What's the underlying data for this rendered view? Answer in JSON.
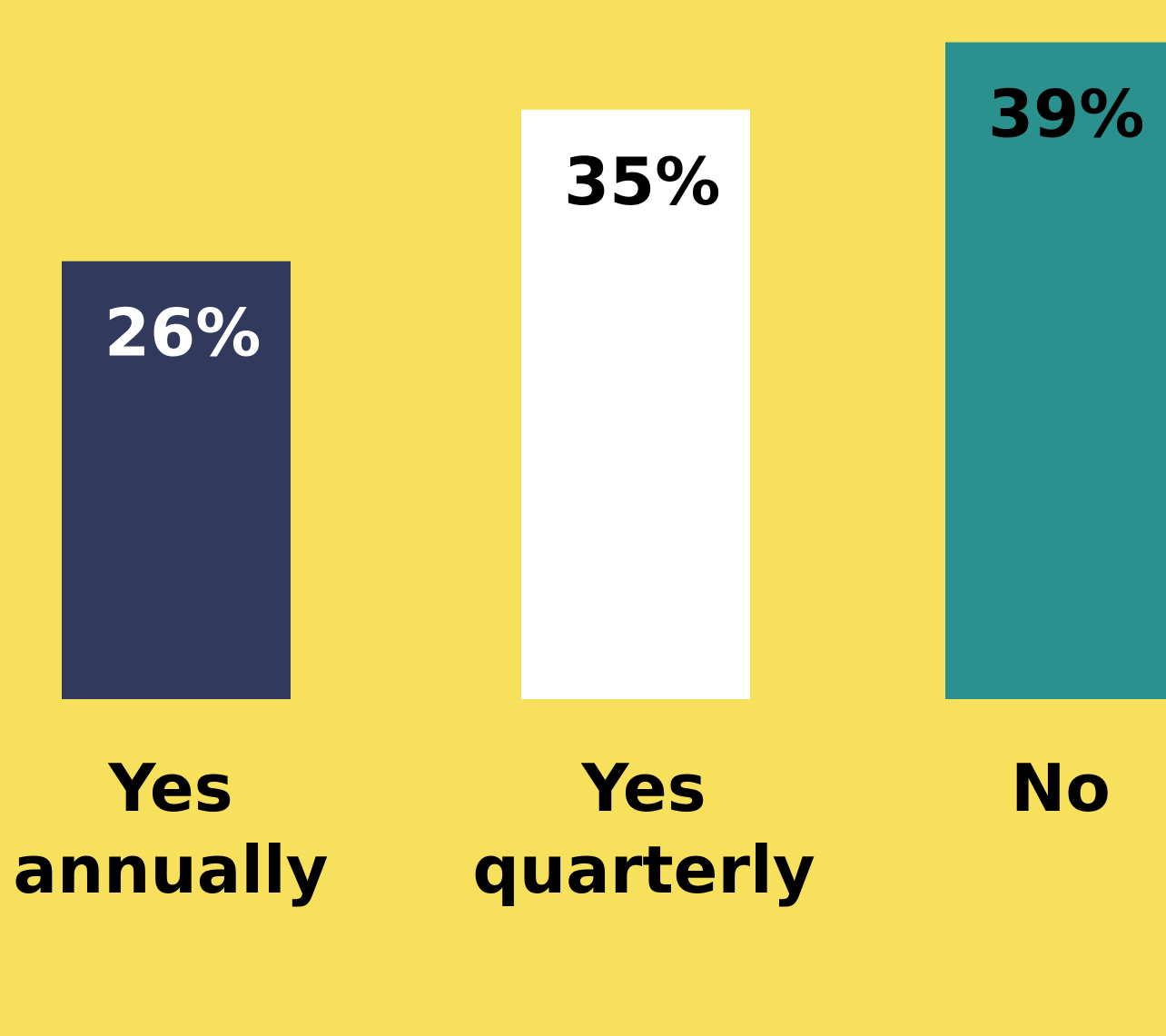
{
  "chart_data": {
    "type": "bar",
    "categories": [
      [
        "Yes",
        "annually"
      ],
      [
        "Yes",
        "quarterly"
      ],
      [
        "No"
      ]
    ],
    "values": [
      26,
      35,
      39
    ],
    "value_labels": [
      "26%",
      "35%",
      "39%"
    ],
    "unit": "%",
    "title": "",
    "xlabel": "",
    "ylabel": "",
    "grid": false,
    "legend": "none",
    "colors": {
      "background": "#F7E15C",
      "bars": [
        "#313A5D",
        "#FFFFFF",
        "#2A918E"
      ],
      "value_text": [
        "#FFFFFF",
        "#000000",
        "#000000"
      ],
      "category_text": "#000000"
    }
  }
}
